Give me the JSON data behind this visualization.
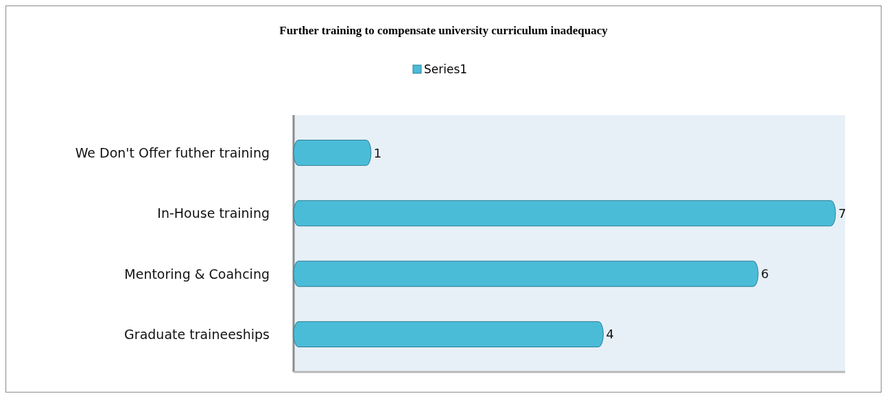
{
  "chart_data": {
    "type": "bar",
    "title": "Further training to compensate university curriculum inadequacy",
    "orientation": "horizontal",
    "categories": [
      "We Don't Offer futher training",
      "In-House training",
      "Mentoring & Coahcing",
      "Graduate traineeships"
    ],
    "series": [
      {
        "name": "Series1",
        "color": "#4bbcd8",
        "values": [
          1,
          7,
          6,
          4
        ]
      }
    ],
    "data_labels": true,
    "legend": "top"
  }
}
